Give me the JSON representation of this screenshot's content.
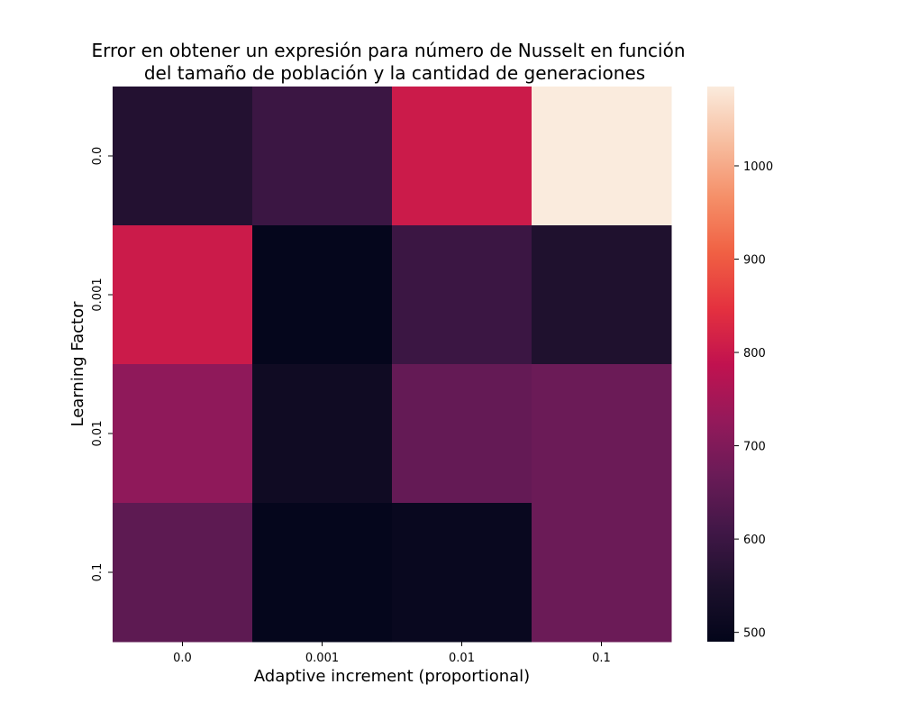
{
  "chart_data": {
    "type": "heatmap",
    "title_lines": [
      "Error en obtener un expresión para número de Nusselt en función",
      "del tamaño de población y la cantidad de generaciones"
    ],
    "xlabel": "Adaptive increment (proportional)",
    "ylabel": "Learning Factor",
    "x_categories": [
      "0.0",
      "0.001",
      "0.01",
      "0.1"
    ],
    "y_categories": [
      "0.0",
      "0.001",
      "0.01",
      "0.1"
    ],
    "values": [
      [
        560,
        600,
        805,
        1085
      ],
      [
        805,
        495,
        600,
        555
      ],
      [
        720,
        520,
        660,
        670
      ],
      [
        650,
        495,
        505,
        670
      ]
    ],
    "colorbar": {
      "vmin": 490,
      "vmax": 1085,
      "ticks": [
        500,
        600,
        700,
        800,
        900,
        1000
      ],
      "colormap": "rocket"
    }
  }
}
